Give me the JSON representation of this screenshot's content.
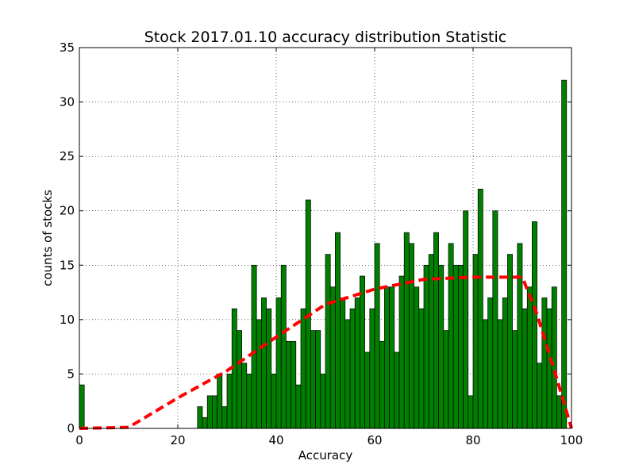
{
  "chart_data": {
    "type": "bar",
    "title": "Stock 2017.01.10 accuracy distribution Statistic",
    "xlabel": "Accuracy",
    "ylabel": "counts of stocks",
    "xlim": [
      0,
      100
    ],
    "ylim": [
      0,
      35
    ],
    "xticks": [
      0,
      20,
      40,
      60,
      80,
      100
    ],
    "yticks": [
      0,
      5,
      10,
      15,
      20,
      25,
      30,
      35
    ],
    "grid": true,
    "bar_color": "#007f00",
    "bar_width": 1.0,
    "bars": {
      "x": [
        0,
        1,
        2,
        3,
        4,
        5,
        6,
        7,
        8,
        9,
        10,
        11,
        12,
        13,
        14,
        15,
        16,
        17,
        18,
        19,
        20,
        21,
        22,
        23,
        24,
        25,
        26,
        27,
        28,
        29,
        30,
        31,
        32,
        33,
        34,
        35,
        36,
        37,
        38,
        39,
        40,
        41,
        42,
        43,
        44,
        45,
        46,
        47,
        48,
        49,
        50,
        51,
        52,
        53,
        54,
        55,
        56,
        57,
        58,
        59,
        60,
        61,
        62,
        63,
        64,
        65,
        66,
        67,
        68,
        69,
        70,
        71,
        72,
        73,
        74,
        75,
        76,
        77,
        78,
        79,
        80,
        81,
        82,
        83,
        84,
        85,
        86,
        87,
        88,
        89,
        90,
        91,
        92,
        93,
        94,
        95,
        96,
        97,
        98,
        99
      ],
      "values": [
        4,
        0,
        0,
        0,
        0,
        0,
        0,
        0,
        0,
        0,
        0,
        0,
        0,
        0,
        0,
        0,
        0,
        0,
        0,
        0,
        0,
        0,
        0,
        0,
        2,
        1,
        3,
        3,
        5,
        2,
        5,
        11,
        9,
        6,
        5,
        15,
        10,
        12,
        11,
        5,
        12,
        15,
        8,
        8,
        4,
        11,
        21,
        9,
        9,
        5,
        16,
        13,
        18,
        12,
        10,
        11,
        12,
        14,
        7,
        11,
        17,
        8,
        13,
        13,
        7,
        14,
        18,
        17,
        13,
        11,
        15,
        16,
        18,
        15,
        9,
        17,
        15,
        15,
        20,
        3,
        16,
        22,
        10,
        12,
        20,
        10,
        12,
        16,
        9,
        17,
        11,
        13,
        19,
        6,
        12,
        11,
        13,
        3,
        32,
        0
      ]
    },
    "series": [
      {
        "type": "line",
        "style": "dashed",
        "color": "#ff0000",
        "x": [
          0,
          10,
          20,
          30,
          40,
          50,
          60,
          70,
          80,
          90,
          93,
          97,
          100
        ],
        "y": [
          0,
          0.1,
          2.8,
          5.3,
          8.4,
          11.4,
          12.8,
          13.7,
          13.9,
          13.9,
          10.5,
          4.6,
          0
        ]
      }
    ]
  }
}
